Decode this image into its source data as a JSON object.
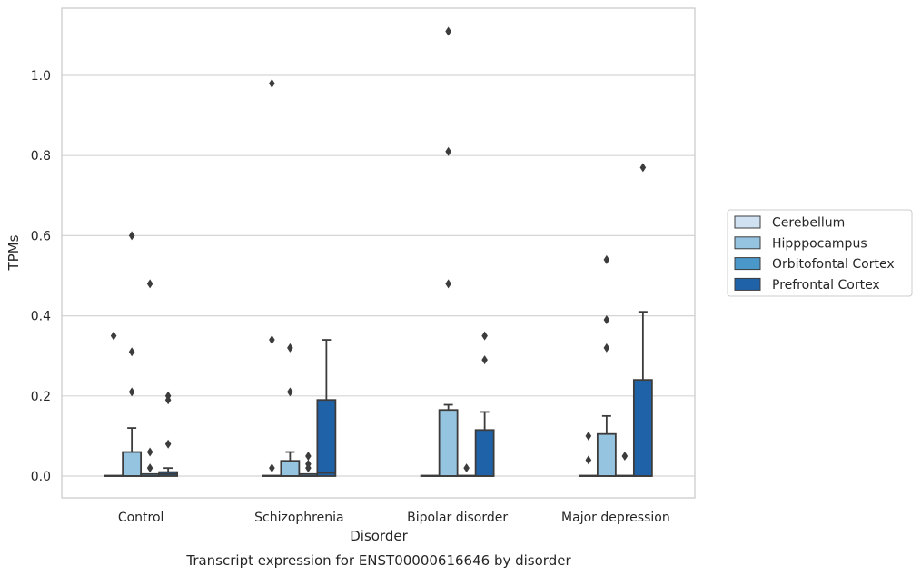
{
  "chart_data": {
    "type": "box",
    "xlabel": "Disorder",
    "ylabel": "TPMs",
    "caption": "Transcript expression for ENST00000616646 by disorder",
    "ylim": [
      -0.055,
      1.17
    ],
    "yticks": [
      0.0,
      0.2,
      0.4,
      0.6,
      0.8,
      1.0
    ],
    "ytick_labels": [
      "0.0",
      "0.2",
      "0.4",
      "0.6",
      "0.8",
      "1.0"
    ],
    "grid": "horizontal",
    "legend_position": "center-right outside",
    "categories": [
      "Control",
      "Schizophrenia",
      "Bipolar disorder",
      "Major depression"
    ],
    "series": [
      {
        "name": "Cerebellum",
        "color": "#d0e1f2",
        "boxes": [
          {
            "q1": 0,
            "median": 0,
            "q3": 0,
            "whisker_low": 0,
            "whisker_high": 0,
            "outliers": [
              0.35
            ]
          },
          {
            "q1": 0,
            "median": 0,
            "q3": 0,
            "whisker_low": 0,
            "whisker_high": 0,
            "outliers": [
              0.98,
              0.34,
              0.02
            ]
          },
          {
            "q1": 0,
            "median": 0,
            "q3": 0,
            "whisker_low": 0,
            "whisker_high": 0,
            "outliers": []
          },
          {
            "q1": 0,
            "median": 0,
            "q3": 0,
            "whisker_low": 0,
            "whisker_high": 0,
            "outliers": [
              0.1,
              0.04
            ]
          }
        ]
      },
      {
        "name": "Hipppocampus",
        "color": "#94c4df",
        "boxes": [
          {
            "q1": 0,
            "median": 0,
            "q3": 0.06,
            "whisker_low": 0,
            "whisker_high": 0.12,
            "outliers": [
              0.6,
              0.31,
              0.21
            ]
          },
          {
            "q1": 0,
            "median": 0,
            "q3": 0.038,
            "whisker_low": 0,
            "whisker_high": 0.06,
            "outliers": [
              0.32,
              0.21
            ]
          },
          {
            "q1": 0,
            "median": 0,
            "q3": 0.165,
            "whisker_low": 0,
            "whisker_high": 0.178,
            "outliers": [
              1.11,
              0.81,
              0.48
            ]
          },
          {
            "q1": 0,
            "median": 0,
            "q3": 0.105,
            "whisker_low": 0,
            "whisker_high": 0.15,
            "outliers": [
              0.54,
              0.39,
              0.32
            ]
          }
        ]
      },
      {
        "name": "Orbitofontal Cortex",
        "color": "#4a98c9",
        "boxes": [
          {
            "q1": 0,
            "median": 0,
            "q3": 0.005,
            "whisker_low": 0,
            "whisker_high": 0.005,
            "outliers": [
              0.48,
              0.06,
              0.02
            ]
          },
          {
            "q1": 0,
            "median": 0,
            "q3": 0.005,
            "whisker_low": 0,
            "whisker_high": 0.005,
            "outliers": [
              0.05,
              0.03,
              0.02
            ]
          },
          {
            "q1": 0,
            "median": 0,
            "q3": 0,
            "whisker_low": 0,
            "whisker_high": 0,
            "outliers": [
              0.02
            ]
          },
          {
            "q1": 0,
            "median": 0,
            "q3": 0,
            "whisker_low": 0,
            "whisker_high": 0,
            "outliers": [
              0.05
            ]
          }
        ]
      },
      {
        "name": "Prefrontal Cortex",
        "color": "#2062a8",
        "boxes": [
          {
            "q1": 0,
            "median": 0.005,
            "q3": 0.01,
            "whisker_low": 0,
            "whisker_high": 0.02,
            "outliers": [
              0.2,
              0.19,
              0.08
            ]
          },
          {
            "q1": 0,
            "median": 0.008,
            "q3": 0.19,
            "whisker_low": 0,
            "whisker_high": 0.34,
            "outliers": []
          },
          {
            "q1": 0,
            "median": 0,
            "q3": 0.115,
            "whisker_low": 0,
            "whisker_high": 0.16,
            "outliers": [
              0.35,
              0.29
            ]
          },
          {
            "q1": 0,
            "median": 0,
            "q3": 0.24,
            "whisker_low": 0,
            "whisker_high": 0.41,
            "outliers": [
              0.77
            ]
          }
        ]
      }
    ]
  }
}
